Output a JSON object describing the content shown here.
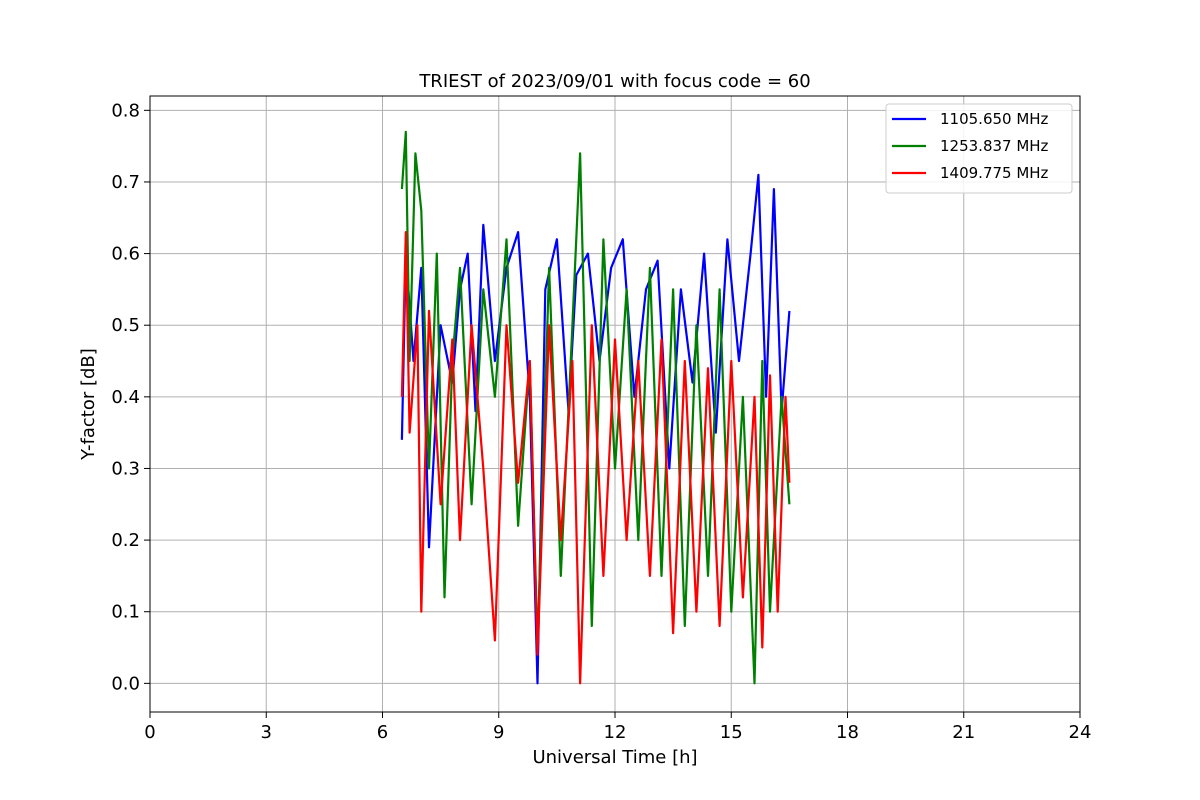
{
  "chart_data": {
    "type": "line",
    "title": "TRIEST of 2023/09/01 with focus code = 60",
    "xlabel": "Universal Time [h]",
    "ylabel": "Y-factor [dB]",
    "xlim": [
      0,
      24
    ],
    "ylim": [
      -0.04,
      0.82
    ],
    "xticks": [
      0,
      3,
      6,
      9,
      12,
      15,
      18,
      21,
      24
    ],
    "yticks": [
      0.0,
      0.1,
      0.2,
      0.3,
      0.4,
      0.5,
      0.6,
      0.7,
      0.8
    ],
    "xtick_labels": [
      "0",
      "3",
      "6",
      "9",
      "12",
      "15",
      "18",
      "21",
      "24"
    ],
    "ytick_labels": [
      "0.0",
      "0.1",
      "0.2",
      "0.3",
      "0.4",
      "0.5",
      "0.6",
      "0.7",
      "0.8"
    ],
    "grid": true,
    "legend_position": "top-right",
    "series": [
      {
        "name": "1105.650 MHz",
        "color": "#0000ff",
        "x": [
          6.5,
          6.6,
          6.8,
          7.0,
          7.2,
          7.5,
          7.8,
          8.0,
          8.2,
          8.4,
          8.6,
          8.9,
          9.2,
          9.5,
          9.8,
          10.0,
          10.2,
          10.5,
          10.8,
          11.0,
          11.3,
          11.6,
          11.9,
          12.2,
          12.5,
          12.8,
          13.1,
          13.4,
          13.7,
          14.0,
          14.3,
          14.6,
          14.9,
          15.2,
          15.5,
          15.7,
          15.9,
          16.1,
          16.3,
          16.5
        ],
        "y": [
          0.34,
          0.6,
          0.45,
          0.58,
          0.19,
          0.5,
          0.42,
          0.55,
          0.6,
          0.38,
          0.64,
          0.45,
          0.58,
          0.63,
          0.4,
          0.0,
          0.55,
          0.62,
          0.38,
          0.57,
          0.6,
          0.45,
          0.58,
          0.62,
          0.4,
          0.55,
          0.59,
          0.3,
          0.55,
          0.42,
          0.6,
          0.35,
          0.62,
          0.45,
          0.6,
          0.71,
          0.4,
          0.69,
          0.38,
          0.52
        ]
      },
      {
        "name": "1253.837 MHz",
        "color": "#008000",
        "x": [
          6.5,
          6.6,
          6.7,
          6.85,
          7.0,
          7.2,
          7.4,
          7.6,
          7.8,
          8.0,
          8.3,
          8.6,
          8.9,
          9.2,
          9.5,
          9.8,
          10.0,
          10.3,
          10.6,
          10.9,
          11.1,
          11.4,
          11.7,
          12.0,
          12.3,
          12.6,
          12.9,
          13.2,
          13.5,
          13.8,
          14.1,
          14.4,
          14.7,
          15.0,
          15.3,
          15.6,
          15.8,
          16.0,
          16.3,
          16.5
        ],
        "y": [
          0.69,
          0.77,
          0.45,
          0.74,
          0.66,
          0.3,
          0.6,
          0.12,
          0.45,
          0.58,
          0.25,
          0.55,
          0.4,
          0.62,
          0.22,
          0.45,
          0.05,
          0.58,
          0.15,
          0.5,
          0.74,
          0.08,
          0.62,
          0.3,
          0.55,
          0.2,
          0.58,
          0.15,
          0.55,
          0.08,
          0.5,
          0.15,
          0.55,
          0.1,
          0.4,
          0.0,
          0.45,
          0.1,
          0.4,
          0.25
        ]
      },
      {
        "name": "1409.775 MHz",
        "color": "#ff0000",
        "x": [
          6.5,
          6.6,
          6.7,
          6.9,
          7.0,
          7.2,
          7.5,
          7.8,
          8.0,
          8.3,
          8.6,
          8.9,
          9.2,
          9.5,
          9.8,
          10.0,
          10.3,
          10.6,
          10.9,
          11.1,
          11.4,
          11.7,
          12.0,
          12.3,
          12.6,
          12.9,
          13.2,
          13.5,
          13.8,
          14.1,
          14.4,
          14.7,
          15.0,
          15.3,
          15.6,
          15.8,
          16.0,
          16.2,
          16.4,
          16.5
        ],
        "y": [
          0.4,
          0.63,
          0.35,
          0.5,
          0.1,
          0.52,
          0.25,
          0.48,
          0.2,
          0.5,
          0.3,
          0.06,
          0.5,
          0.28,
          0.45,
          0.04,
          0.5,
          0.2,
          0.45,
          0.0,
          0.5,
          0.15,
          0.48,
          0.2,
          0.45,
          0.15,
          0.48,
          0.07,
          0.45,
          0.1,
          0.44,
          0.08,
          0.45,
          0.12,
          0.4,
          0.05,
          0.43,
          0.1,
          0.4,
          0.28
        ]
      }
    ]
  }
}
